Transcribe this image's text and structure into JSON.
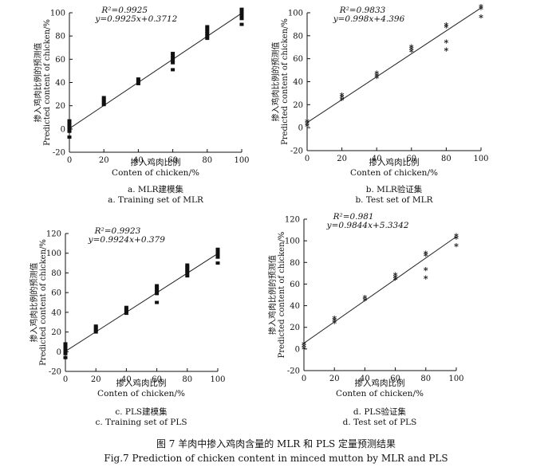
{
  "figure": {
    "caption_zh": "图 7  羊肉中掺入鸡肉含量的 MLR 和 PLS 定量预测结果",
    "caption_en": "Fig.7   Prediction of chicken content in minced mutton by MLR and PLS"
  },
  "chart_data": [
    {
      "type": "scatter",
      "ylabel_zh": "掺入鸡肉比例的预测值",
      "ylabel_en": "Predicted content of chicken/%",
      "xlabel_zh": "掺入鸡肉比例",
      "xlabel_en": "Conten of chicken/%",
      "r2_label": "R²=0.9925",
      "equation": "y=0.9925x+0.3712",
      "subtitle_zh": "a. MLR建模集",
      "subtitle_en": "a. Training set of MLR",
      "xlim": [
        0,
        100
      ],
      "ylim": [
        -20,
        100
      ],
      "xticks": [
        0,
        20,
        40,
        60,
        80,
        100
      ],
      "yticks": [
        -20,
        0,
        20,
        40,
        60,
        80,
        100
      ],
      "fit": {
        "slope": 0.9925,
        "intercept": 0.3712
      },
      "marker": "square",
      "points": [
        {
          "x": 0,
          "y": 7
        },
        {
          "x": 0,
          "y": 5
        },
        {
          "x": 0,
          "y": 3
        },
        {
          "x": 0,
          "y": 1
        },
        {
          "x": 0,
          "y": -1
        },
        {
          "x": 0,
          "y": -2
        },
        {
          "x": 0,
          "y": -7
        },
        {
          "x": 20,
          "y": 27
        },
        {
          "x": 20,
          "y": 25
        },
        {
          "x": 20,
          "y": 23
        },
        {
          "x": 20,
          "y": 21
        },
        {
          "x": 40,
          "y": 43
        },
        {
          "x": 40,
          "y": 41
        },
        {
          "x": 40,
          "y": 39
        },
        {
          "x": 60,
          "y": 65
        },
        {
          "x": 60,
          "y": 63
        },
        {
          "x": 60,
          "y": 61
        },
        {
          "x": 60,
          "y": 59
        },
        {
          "x": 60,
          "y": 57
        },
        {
          "x": 60,
          "y": 51
        },
        {
          "x": 80,
          "y": 88
        },
        {
          "x": 80,
          "y": 86
        },
        {
          "x": 80,
          "y": 84
        },
        {
          "x": 80,
          "y": 82
        },
        {
          "x": 80,
          "y": 80
        },
        {
          "x": 80,
          "y": 78
        },
        {
          "x": 100,
          "y": 103
        },
        {
          "x": 100,
          "y": 101
        },
        {
          "x": 100,
          "y": 99
        },
        {
          "x": 100,
          "y": 97
        },
        {
          "x": 100,
          "y": 95
        },
        {
          "x": 100,
          "y": 90
        }
      ]
    },
    {
      "type": "scatter",
      "ylabel_zh": "掺入鸡肉比例的预测值",
      "ylabel_en": "Predicted content of chicken/%",
      "xlabel_zh": "掺入鸡肉比例",
      "xlabel_en": "Conten of chicken/%",
      "r2_label": "R²=0.9833",
      "equation": "y=0.998x+4.396",
      "subtitle_zh": "b. MLR验证集",
      "subtitle_en": "b. Test set of MLR",
      "xlim": [
        0,
        100
      ],
      "ylim": [
        -20,
        100
      ],
      "xticks": [
        0,
        20,
        40,
        60,
        80,
        100
      ],
      "yticks": [
        -20,
        0,
        20,
        40,
        60,
        80,
        100
      ],
      "fit": {
        "slope": 0.998,
        "intercept": 4.396
      },
      "marker": "star",
      "points": [
        {
          "x": 0,
          "y": 5
        },
        {
          "x": 0,
          "y": 3
        },
        {
          "x": 0,
          "y": 1
        },
        {
          "x": 20,
          "y": 28
        },
        {
          "x": 20,
          "y": 26
        },
        {
          "x": 20,
          "y": 24
        },
        {
          "x": 40,
          "y": 47
        },
        {
          "x": 40,
          "y": 45
        },
        {
          "x": 40,
          "y": 43
        },
        {
          "x": 60,
          "y": 70
        },
        {
          "x": 60,
          "y": 68
        },
        {
          "x": 60,
          "y": 66
        },
        {
          "x": 80,
          "y": 89
        },
        {
          "x": 80,
          "y": 87
        },
        {
          "x": 80,
          "y": 74
        },
        {
          "x": 80,
          "y": 67
        },
        {
          "x": 100,
          "y": 105
        },
        {
          "x": 100,
          "y": 103
        },
        {
          "x": 100,
          "y": 96
        }
      ]
    },
    {
      "type": "scatter",
      "ylabel_zh": "掺入鸡肉比例的预测值",
      "ylabel_en": "Predicted content of chicken/%",
      "xlabel_zh": "掺入鸡肉比例",
      "xlabel_en": "Conten of chicken/%",
      "r2_label": "R²=0.9923",
      "equation": "y=0.9924x+0.379",
      "subtitle_zh": "c. PLS建模集",
      "subtitle_en": "c. Training set of PLS",
      "xlim": [
        0,
        100
      ],
      "ylim": [
        -20,
        120
      ],
      "xticks": [
        0,
        20,
        40,
        60,
        80,
        100
      ],
      "yticks": [
        -20,
        0,
        20,
        40,
        60,
        80,
        100,
        120
      ],
      "fit": {
        "slope": 0.9924,
        "intercept": 0.379
      },
      "marker": "square",
      "points": [
        {
          "x": 0,
          "y": 8
        },
        {
          "x": 0,
          "y": 6
        },
        {
          "x": 0,
          "y": 4
        },
        {
          "x": 0,
          "y": 2
        },
        {
          "x": 0,
          "y": 0
        },
        {
          "x": 0,
          "y": -2
        },
        {
          "x": 0,
          "y": -6
        },
        {
          "x": 20,
          "y": 26
        },
        {
          "x": 20,
          "y": 24
        },
        {
          "x": 20,
          "y": 22
        },
        {
          "x": 20,
          "y": 20
        },
        {
          "x": 40,
          "y": 45
        },
        {
          "x": 40,
          "y": 43
        },
        {
          "x": 40,
          "y": 41
        },
        {
          "x": 40,
          "y": 39
        },
        {
          "x": 60,
          "y": 67
        },
        {
          "x": 60,
          "y": 65
        },
        {
          "x": 60,
          "y": 63
        },
        {
          "x": 60,
          "y": 61
        },
        {
          "x": 60,
          "y": 59
        },
        {
          "x": 60,
          "y": 50
        },
        {
          "x": 80,
          "y": 88
        },
        {
          "x": 80,
          "y": 86
        },
        {
          "x": 80,
          "y": 84
        },
        {
          "x": 80,
          "y": 82
        },
        {
          "x": 80,
          "y": 80
        },
        {
          "x": 80,
          "y": 77
        },
        {
          "x": 100,
          "y": 104
        },
        {
          "x": 100,
          "y": 102
        },
        {
          "x": 100,
          "y": 100
        },
        {
          "x": 100,
          "y": 98
        },
        {
          "x": 100,
          "y": 96
        },
        {
          "x": 100,
          "y": 90
        }
      ]
    },
    {
      "type": "scatter",
      "ylabel_zh": "掺入鸡肉比例的预测值",
      "ylabel_en": "Predicted content of chicken/%",
      "xlabel_zh": "掺入鸡肉比例",
      "xlabel_en": "Conten of chicken/%",
      "r2_label": "R²=0.981",
      "equation": "y=0.9844x+5.3342",
      "subtitle_zh": "d. PLS验证集",
      "subtitle_en": "d. Test set of PLS",
      "xlim": [
        0,
        100
      ],
      "ylim": [
        -20,
        120
      ],
      "xticks": [
        0,
        20,
        40,
        60,
        80,
        100
      ],
      "yticks": [
        -20,
        0,
        20,
        40,
        60,
        80,
        100,
        120
      ],
      "fit": {
        "slope": 0.9844,
        "intercept": 5.3342
      },
      "marker": "star",
      "points": [
        {
          "x": 0,
          "y": 4
        },
        {
          "x": 0,
          "y": 2
        },
        {
          "x": 0,
          "y": 0
        },
        {
          "x": 20,
          "y": 28
        },
        {
          "x": 20,
          "y": 26
        },
        {
          "x": 20,
          "y": 24
        },
        {
          "x": 40,
          "y": 47
        },
        {
          "x": 40,
          "y": 45
        },
        {
          "x": 60,
          "y": 68
        },
        {
          "x": 60,
          "y": 66
        },
        {
          "x": 60,
          "y": 64
        },
        {
          "x": 80,
          "y": 88
        },
        {
          "x": 80,
          "y": 86
        },
        {
          "x": 80,
          "y": 73
        },
        {
          "x": 80,
          "y": 65
        },
        {
          "x": 100,
          "y": 104
        },
        {
          "x": 100,
          "y": 102
        },
        {
          "x": 100,
          "y": 95
        }
      ]
    }
  ]
}
